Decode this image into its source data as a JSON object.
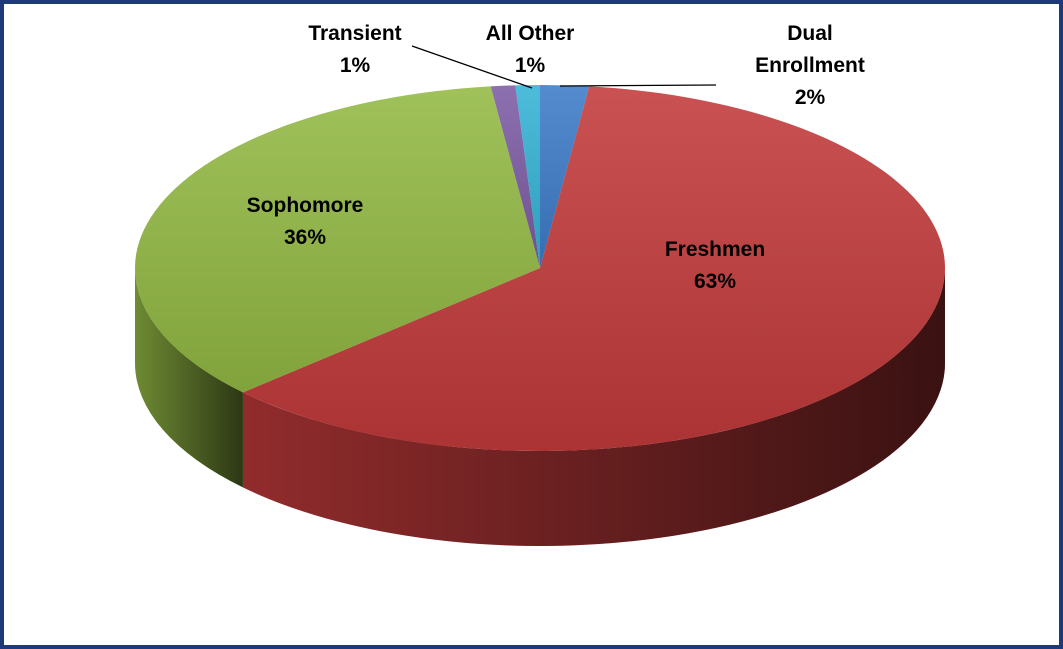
{
  "chart_data": {
    "type": "pie",
    "categories": [
      "Dual Enrollment",
      "Freshmen",
      "Sophomore",
      "Transient",
      "All Other"
    ],
    "values": [
      2,
      63,
      36,
      1,
      1
    ],
    "value_labels": [
      "2%",
      "63%",
      "36%",
      "1%",
      "1%"
    ],
    "colors": [
      "#3d7cc9",
      "#c23a3b",
      "#93b944",
      "#7d5ca4",
      "#35b3d6"
    ],
    "three_d": true
  }
}
